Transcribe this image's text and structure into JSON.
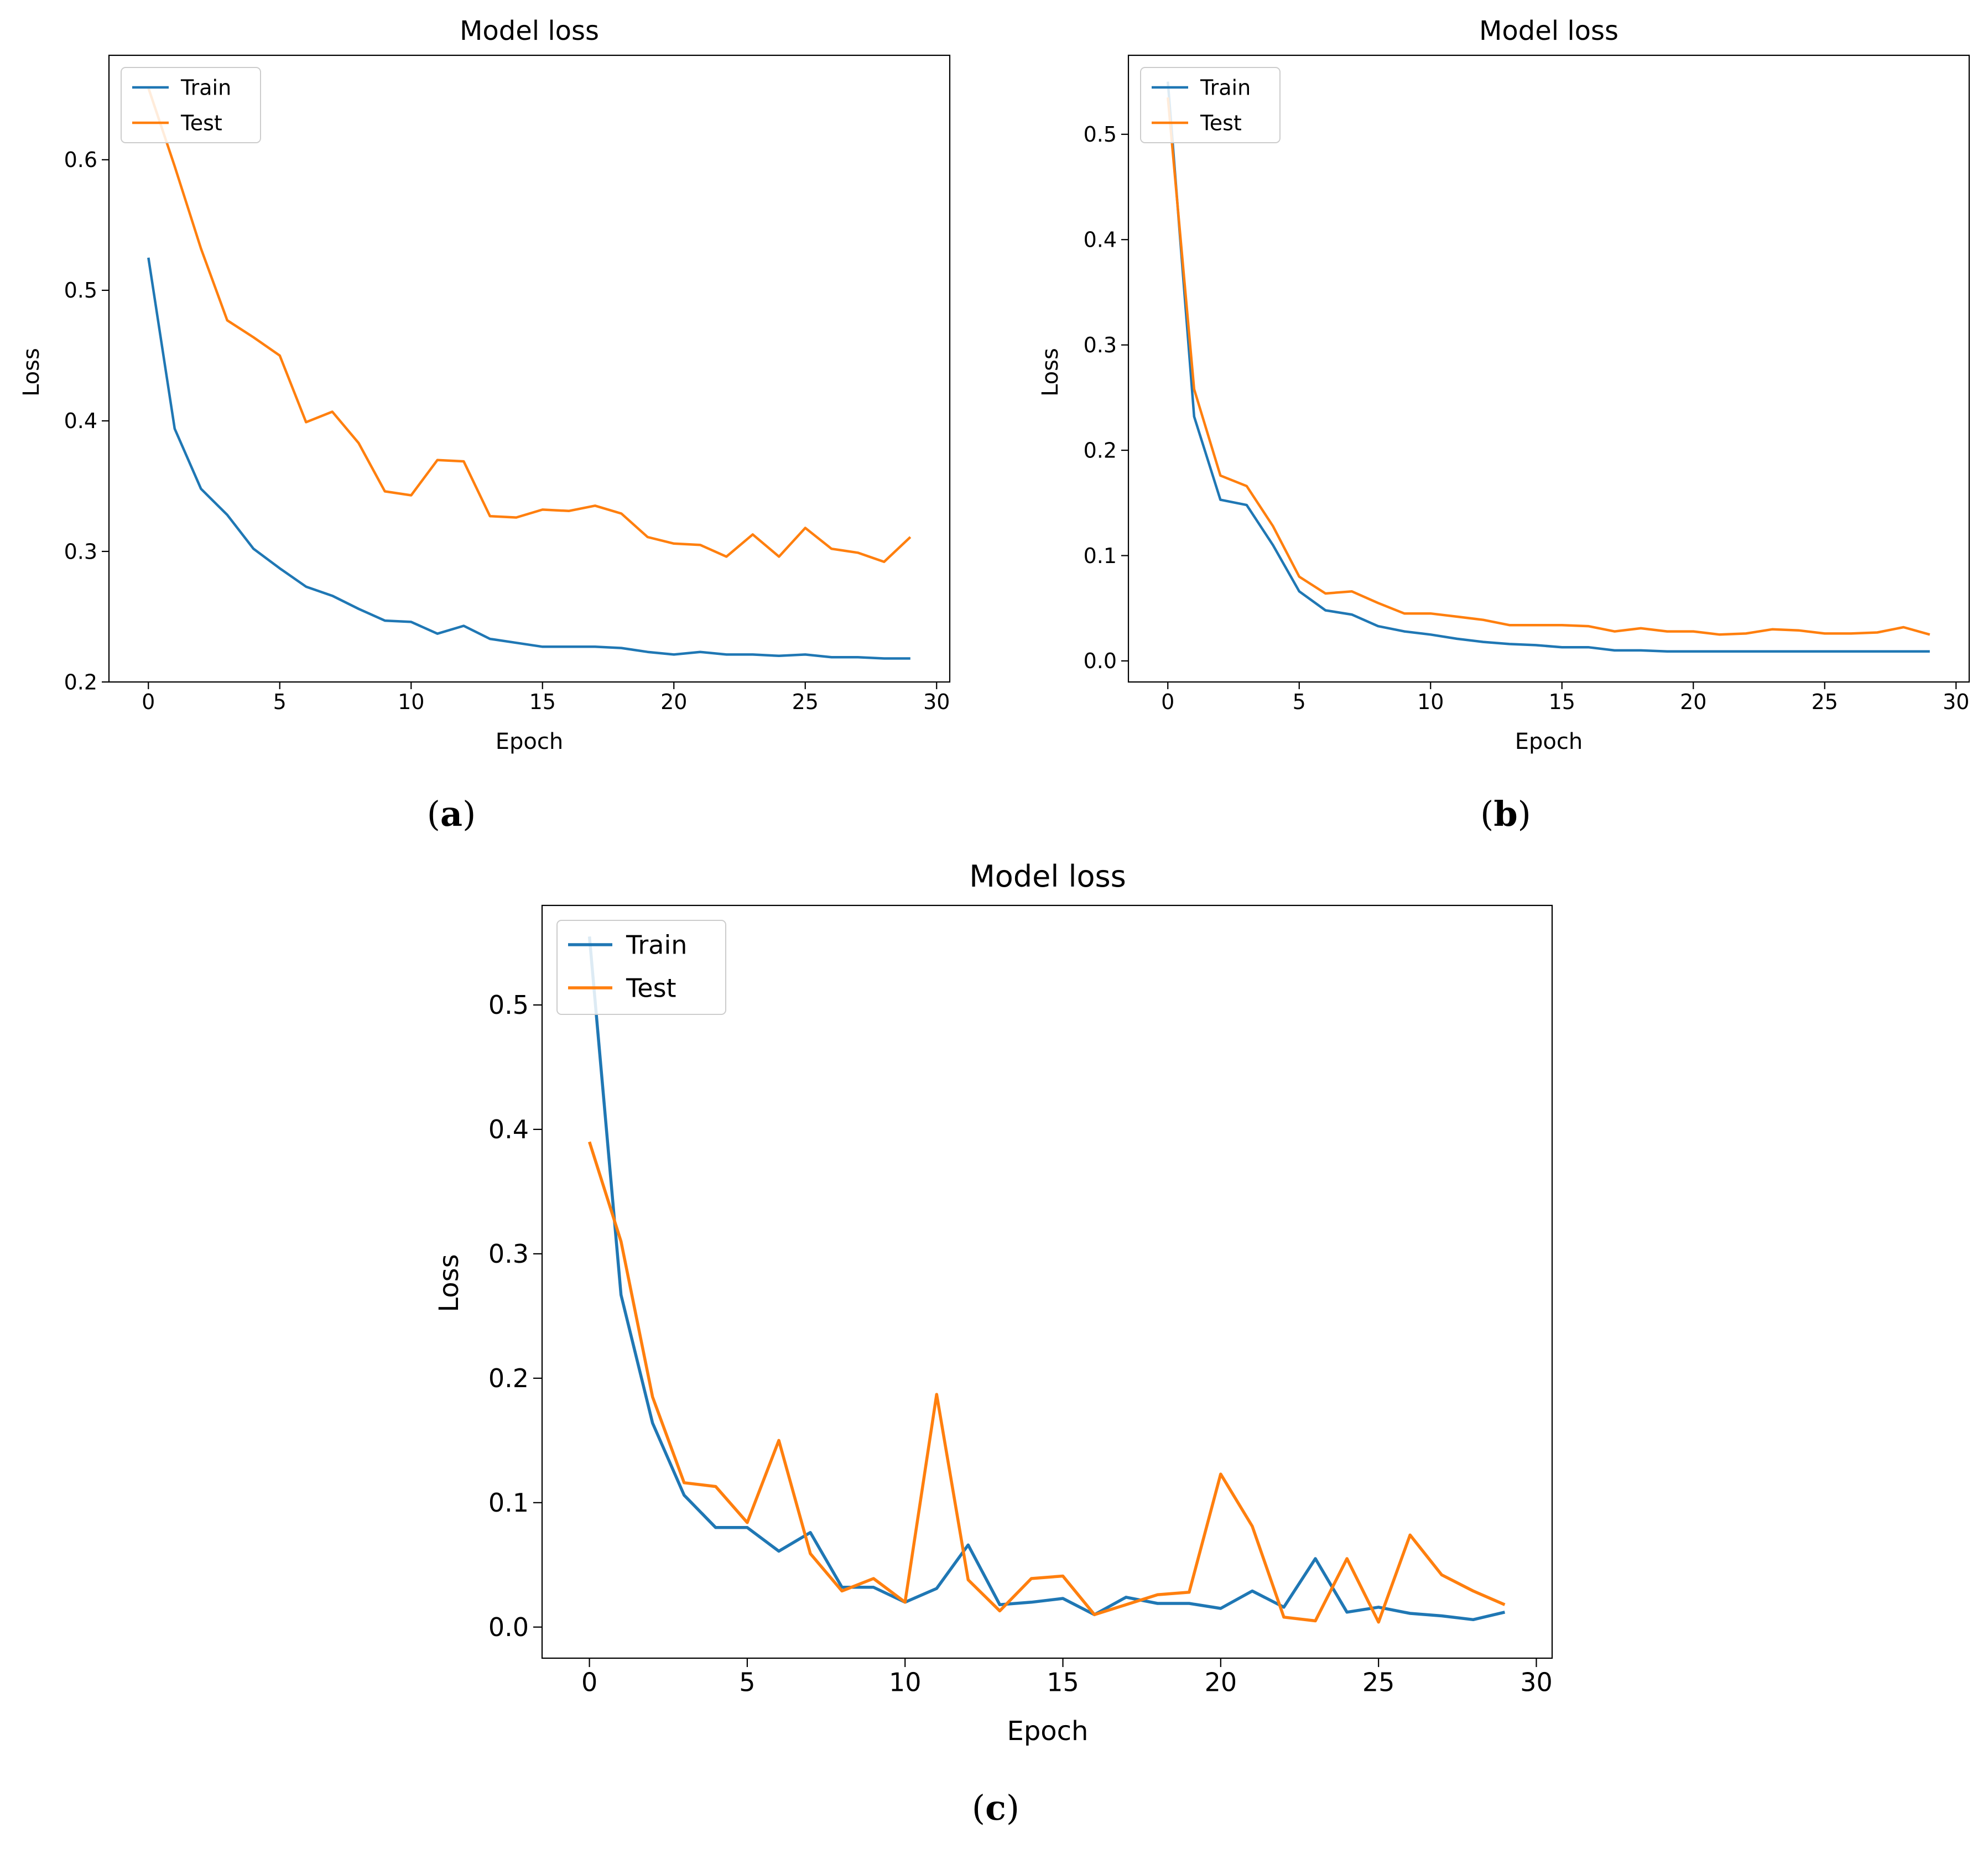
{
  "colors": {
    "train": "#1f77b4",
    "test": "#ff7f0e"
  },
  "panels": [
    {
      "caption_label": "a"
    },
    {
      "caption_label": "b"
    },
    {
      "caption_label": "c"
    }
  ],
  "chart_data": [
    {
      "type": "line",
      "title": "Model loss",
      "xlabel": "Epoch",
      "ylabel": "Loss",
      "xlim": [
        -1.5,
        30.5
      ],
      "ylim": [
        0.2,
        0.68
      ],
      "xticks": [
        0,
        5,
        10,
        15,
        20,
        25,
        30
      ],
      "yticks": [
        0.2,
        0.3,
        0.4,
        0.5,
        0.6
      ],
      "ytick_labels": [
        "0.2",
        "0.3",
        "0.4",
        "0.5",
        "0.6"
      ],
      "legend": {
        "position": "upper-left",
        "entries": [
          "Train",
          "Test"
        ]
      },
      "grid": false,
      "x": [
        0,
        1,
        2,
        3,
        4,
        5,
        6,
        7,
        8,
        9,
        10,
        11,
        12,
        13,
        14,
        15,
        16,
        17,
        18,
        19,
        20,
        21,
        22,
        23,
        24,
        25,
        26,
        27,
        28,
        29
      ],
      "series": [
        {
          "name": "Train",
          "values": [
            0.525,
            0.394,
            0.348,
            0.328,
            0.302,
            0.287,
            0.273,
            0.266,
            0.256,
            0.247,
            0.246,
            0.237,
            0.243,
            0.233,
            0.23,
            0.227,
            0.227,
            0.227,
            0.226,
            0.223,
            0.221,
            0.223,
            0.221,
            0.221,
            0.22,
            0.221,
            0.219,
            0.219,
            0.218,
            0.218
          ]
        },
        {
          "name": "Test",
          "values": [
            0.655,
            0.595,
            0.532,
            0.477,
            0.464,
            0.45,
            0.399,
            0.407,
            0.383,
            0.346,
            0.343,
            0.37,
            0.369,
            0.327,
            0.326,
            0.332,
            0.331,
            0.335,
            0.329,
            0.311,
            0.306,
            0.305,
            0.296,
            0.313,
            0.296,
            0.318,
            0.302,
            0.299,
            0.292,
            0.311
          ]
        }
      ]
    },
    {
      "type": "line",
      "title": "Model loss",
      "xlabel": "Epoch",
      "ylabel": "Loss",
      "xlim": [
        -1.5,
        30.5
      ],
      "ylim": [
        -0.02,
        0.575
      ],
      "xticks": [
        0,
        5,
        10,
        15,
        20,
        25,
        30
      ],
      "yticks": [
        0.0,
        0.1,
        0.2,
        0.3,
        0.4,
        0.5
      ],
      "ytick_labels": [
        "0.0",
        "0.1",
        "0.2",
        "0.3",
        "0.4",
        "0.5"
      ],
      "legend": {
        "position": "upper-left",
        "entries": [
          "Train",
          "Test"
        ]
      },
      "grid": false,
      "x": [
        0,
        1,
        2,
        3,
        4,
        5,
        6,
        7,
        8,
        9,
        10,
        11,
        12,
        13,
        14,
        15,
        16,
        17,
        18,
        19,
        20,
        21,
        22,
        23,
        24,
        25,
        26,
        27,
        28,
        29
      ],
      "series": [
        {
          "name": "Train",
          "values": [
            0.55,
            0.232,
            0.153,
            0.148,
            0.11,
            0.066,
            0.048,
            0.044,
            0.033,
            0.028,
            0.025,
            0.021,
            0.018,
            0.016,
            0.015,
            0.013,
            0.013,
            0.01,
            0.01,
            0.009,
            0.009,
            0.009,
            0.009,
            0.009,
            0.009,
            0.009,
            0.009,
            0.009,
            0.009,
            0.009
          ]
        },
        {
          "name": "Test",
          "values": [
            0.535,
            0.258,
            0.176,
            0.166,
            0.128,
            0.08,
            0.064,
            0.066,
            0.055,
            0.045,
            0.045,
            0.042,
            0.039,
            0.034,
            0.034,
            0.034,
            0.033,
            0.028,
            0.031,
            0.028,
            0.028,
            0.025,
            0.026,
            0.03,
            0.029,
            0.026,
            0.026,
            0.027,
            0.032,
            0.025
          ]
        }
      ]
    },
    {
      "type": "line",
      "title": "Model loss",
      "xlabel": "Epoch",
      "ylabel": "Loss",
      "xlim": [
        -1.5,
        30.5
      ],
      "ylim": [
        -0.025,
        0.58
      ],
      "xticks": [
        0,
        5,
        10,
        15,
        20,
        25,
        30
      ],
      "yticks": [
        0.0,
        0.1,
        0.2,
        0.3,
        0.4,
        0.5
      ],
      "ytick_labels": [
        "0.0",
        "0.1",
        "0.2",
        "0.3",
        "0.4",
        "0.5"
      ],
      "legend": {
        "position": "upper-left",
        "entries": [
          "Train",
          "Test"
        ]
      },
      "grid": false,
      "x": [
        0,
        1,
        2,
        3,
        4,
        5,
        6,
        7,
        8,
        9,
        10,
        11,
        12,
        13,
        14,
        15,
        16,
        17,
        18,
        19,
        20,
        21,
        22,
        23,
        24,
        25,
        26,
        27,
        28,
        29
      ],
      "series": [
        {
          "name": "Train",
          "values": [
            0.555,
            0.267,
            0.164,
            0.106,
            0.08,
            0.08,
            0.061,
            0.076,
            0.032,
            0.032,
            0.02,
            0.031,
            0.066,
            0.018,
            0.02,
            0.023,
            0.01,
            0.024,
            0.019,
            0.019,
            0.015,
            0.029,
            0.016,
            0.055,
            0.012,
            0.016,
            0.011,
            0.009,
            0.006,
            0.012
          ]
        },
        {
          "name": "Test",
          "values": [
            0.39,
            0.31,
            0.185,
            0.116,
            0.113,
            0.084,
            0.15,
            0.059,
            0.029,
            0.039,
            0.02,
            0.187,
            0.038,
            0.013,
            0.039,
            0.041,
            0.01,
            0.018,
            0.026,
            0.028,
            0.123,
            0.081,
            0.008,
            0.005,
            0.055,
            0.004,
            0.074,
            0.042,
            0.029,
            0.018
          ]
        }
      ]
    }
  ]
}
